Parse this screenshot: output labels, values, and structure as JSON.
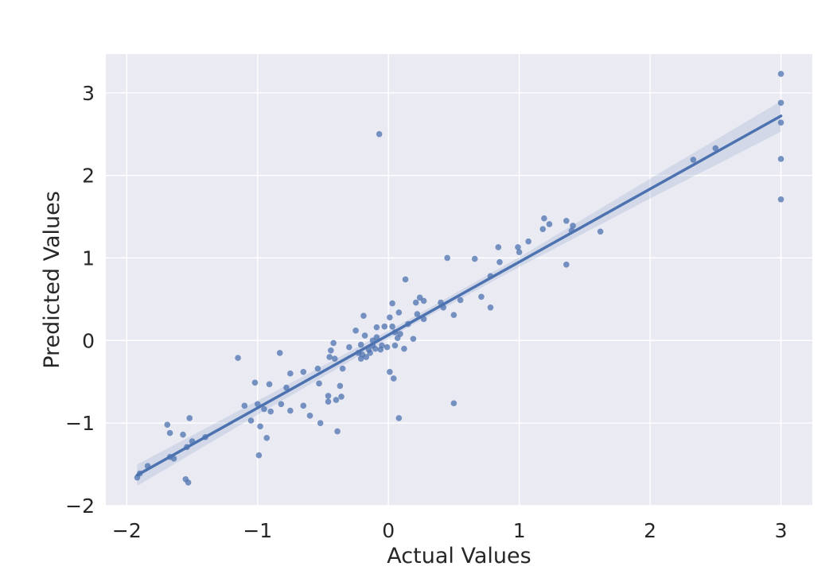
{
  "chart_data": {
    "type": "scatter",
    "title": "",
    "xlabel": "Actual Values",
    "ylabel": "Predicted Values",
    "xlim": [
      -2.16,
      3.24
    ],
    "ylim": [
      -2.0,
      3.47
    ],
    "grid": true,
    "legend": false,
    "xticks": {
      "values": [
        -2,
        -1,
        0,
        1,
        2,
        3
      ],
      "labels": [
        "−2",
        "−1",
        "0",
        "1",
        "2",
        "3"
      ]
    },
    "yticks": {
      "values": [
        -2,
        -1,
        0,
        1,
        2,
        3
      ],
      "labels": [
        "−2",
        "−1",
        "0",
        "1",
        "2",
        "3"
      ]
    },
    "styles": {
      "figure_bg": "#ffffff",
      "plot_bg": "#eaeaf2",
      "grid_color": "#ffffff",
      "dot_color": "#4c72b0",
      "dot_opacity": 0.75,
      "line_color": "#4c72b0",
      "band_color": "#4c72b0",
      "band_opacity": 0.15,
      "text_color": "#262626"
    },
    "points": [
      [
        -1.92,
        -1.66
      ],
      [
        -1.9,
        -1.61
      ],
      [
        -1.84,
        -1.52
      ],
      [
        -1.69,
        -1.02
      ],
      [
        -1.67,
        -1.12
      ],
      [
        -1.67,
        -1.41
      ],
      [
        -1.64,
        -1.43
      ],
      [
        -1.57,
        -1.14
      ],
      [
        -1.55,
        -1.68
      ],
      [
        -1.53,
        -1.72
      ],
      [
        -1.52,
        -0.94
      ],
      [
        -1.54,
        -1.29
      ],
      [
        -1.5,
        -1.22
      ],
      [
        -1.4,
        -1.17
      ],
      [
        -1.15,
        -0.21
      ],
      [
        -1.1,
        -0.79
      ],
      [
        -1.05,
        -0.97
      ],
      [
        -1.02,
        -0.51
      ],
      [
        -1.0,
        -0.77
      ],
      [
        -0.98,
        -1.04
      ],
      [
        -0.99,
        -1.39
      ],
      [
        -0.95,
        -0.83
      ],
      [
        -0.93,
        -1.18
      ],
      [
        -0.91,
        -0.53
      ],
      [
        -0.9,
        -0.86
      ],
      [
        -0.83,
        -0.15
      ],
      [
        -0.82,
        -0.77
      ],
      [
        -0.78,
        -0.57
      ],
      [
        -0.75,
        -0.4
      ],
      [
        -0.75,
        -0.85
      ],
      [
        -0.65,
        -0.38
      ],
      [
        -0.65,
        -0.79
      ],
      [
        -0.6,
        -0.91
      ],
      [
        -0.54,
        -0.34
      ],
      [
        -0.53,
        -0.52
      ],
      [
        -0.52,
        -1.0
      ],
      [
        -0.46,
        -0.67
      ],
      [
        -0.46,
        -0.74
      ],
      [
        -0.45,
        -0.2
      ],
      [
        -0.44,
        -0.12
      ],
      [
        -0.42,
        -0.03
      ],
      [
        -0.41,
        -0.22
      ],
      [
        -0.4,
        -0.72
      ],
      [
        -0.39,
        -1.1
      ],
      [
        -0.37,
        -0.55
      ],
      [
        -0.36,
        -0.68
      ],
      [
        -0.35,
        -0.34
      ],
      [
        -0.3,
        -0.08
      ],
      [
        -0.25,
        0.12
      ],
      [
        -0.23,
        -0.15
      ],
      [
        -0.21,
        -0.05
      ],
      [
        -0.21,
        -0.22
      ],
      [
        -0.2,
        -0.17
      ],
      [
        -0.19,
        0.3
      ],
      [
        -0.18,
        0.06
      ],
      [
        -0.17,
        -0.2
      ],
      [
        -0.15,
        -0.11
      ],
      [
        -0.14,
        -0.15
      ],
      [
        -0.12,
        0.0
      ],
      [
        -0.12,
        -0.06
      ],
      [
        -0.1,
        -0.1
      ],
      [
        -0.09,
        0.04
      ],
      [
        -0.09,
        0.16
      ],
      [
        -0.07,
        2.5
      ],
      [
        -0.06,
        -0.11
      ],
      [
        -0.05,
        -0.06
      ],
      [
        -0.03,
        0.17
      ],
      [
        -0.01,
        -0.08
      ],
      [
        0.01,
        0.28
      ],
      [
        0.01,
        -0.38
      ],
      [
        0.03,
        0.17
      ],
      [
        0.03,
        0.45
      ],
      [
        0.04,
        -0.46
      ],
      [
        0.05,
        0.1
      ],
      [
        0.05,
        -0.06
      ],
      [
        0.07,
        0.03
      ],
      [
        0.08,
        0.34
      ],
      [
        0.08,
        -0.94
      ],
      [
        0.09,
        0.08
      ],
      [
        0.12,
        -0.1
      ],
      [
        0.13,
        0.74
      ],
      [
        0.15,
        0.2
      ],
      [
        0.19,
        0.02
      ],
      [
        0.21,
        0.46
      ],
      [
        0.22,
        0.32
      ],
      [
        0.24,
        0.52
      ],
      [
        0.27,
        0.48
      ],
      [
        0.27,
        0.26
      ],
      [
        0.4,
        0.46
      ],
      [
        0.42,
        0.4
      ],
      [
        0.45,
        1.0
      ],
      [
        0.5,
        0.31
      ],
      [
        0.5,
        -0.76
      ],
      [
        0.55,
        0.49
      ],
      [
        0.66,
        0.99
      ],
      [
        0.71,
        0.53
      ],
      [
        0.78,
        0.78
      ],
      [
        0.78,
        0.4
      ],
      [
        0.84,
        1.13
      ],
      [
        0.85,
        0.95
      ],
      [
        0.99,
        1.13
      ],
      [
        1.0,
        1.07
      ],
      [
        1.07,
        1.2
      ],
      [
        1.18,
        1.35
      ],
      [
        1.19,
        1.48
      ],
      [
        1.23,
        1.41
      ],
      [
        1.36,
        1.45
      ],
      [
        1.36,
        0.92
      ],
      [
        1.4,
        1.33
      ],
      [
        1.41,
        1.39
      ],
      [
        1.62,
        1.32
      ],
      [
        2.33,
        2.19
      ],
      [
        2.5,
        2.33
      ],
      [
        3.0,
        3.23
      ],
      [
        3.0,
        2.88
      ],
      [
        3.0,
        2.64
      ],
      [
        3.0,
        2.2
      ],
      [
        3.0,
        1.71
      ]
    ],
    "regression_line": {
      "x": [
        -1.92,
        3.0
      ],
      "y": [
        -1.63,
        2.72
      ]
    },
    "confidence_band": {
      "x": [
        -1.92,
        -1.0,
        0.0,
        0.15,
        1.0,
        2.0,
        3.0
      ],
      "lower": [
        -1.76,
        -0.9,
        0.02,
        0.16,
        0.89,
        1.72,
        2.53
      ],
      "upper": [
        -1.5,
        -0.73,
        0.12,
        0.25,
        1.01,
        1.96,
        2.9
      ]
    }
  }
}
